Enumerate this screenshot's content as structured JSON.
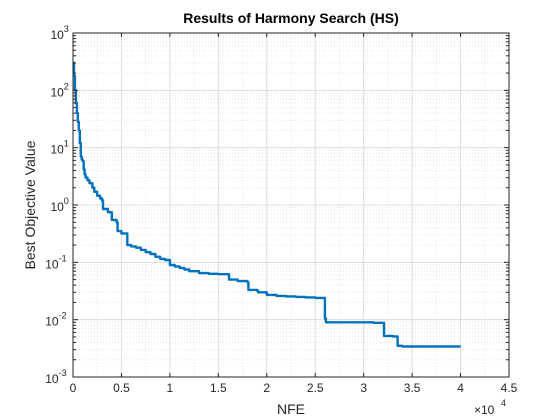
{
  "chart_data": {
    "type": "line",
    "title": "Results of Harmony Search (HS)",
    "xlabel": "NFE",
    "ylabel": "Best Objective Value",
    "xlim": [
      0,
      45000
    ],
    "ylim": [
      0.001,
      1000
    ],
    "yscale": "log",
    "grid": true,
    "minor_grid": true,
    "x_exponent_label": "×10",
    "x_exponent_power": "4",
    "x_tick_values": [
      0,
      5000,
      10000,
      15000,
      20000,
      25000,
      30000,
      35000,
      40000,
      45000
    ],
    "x_tick_labels": [
      "0",
      "0.5",
      "1",
      "1.5",
      "2",
      "2.5",
      "3",
      "3.5",
      "4",
      "4.5"
    ],
    "y_tick_values": [
      0.001,
      0.01,
      0.1,
      1,
      10,
      100,
      1000
    ],
    "y_tick_bases": [
      "10",
      "10",
      "10",
      "10",
      "10",
      "10",
      "10"
    ],
    "y_tick_exponents": [
      "-3",
      "-2",
      "-1",
      "0",
      "1",
      "2",
      "3"
    ],
    "series": [
      {
        "color": "#0072bd",
        "x": [
          0,
          100,
          200,
          300,
          400,
          500,
          600,
          700,
          800,
          900,
          1000,
          1100,
          1200,
          1300,
          1500,
          1700,
          2000,
          2200,
          2500,
          2800,
          3000,
          3100,
          3500,
          3600,
          4000,
          4500,
          4600,
          5000,
          5500,
          5600,
          6000,
          6500,
          7000,
          7500,
          8000,
          8500,
          9000,
          9500,
          10000,
          10500,
          11000,
          11500,
          12000,
          13000,
          14000,
          15000,
          16000,
          16100,
          17000,
          18000,
          18100,
          19000,
          19100,
          20000,
          21000,
          22000,
          23000,
          24000,
          25000,
          25900,
          26000,
          26100,
          27000,
          28000,
          29000,
          30000,
          31000,
          32000,
          32100,
          33000,
          33500,
          34000,
          35000,
          36000,
          37000,
          38000,
          39000,
          40000
        ],
        "y": [
          300,
          180,
          100,
          60,
          40,
          28,
          20,
          12,
          7,
          6.2,
          5.8,
          4.2,
          3.4,
          3.0,
          2.7,
          2.4,
          2.0,
          1.7,
          1.45,
          1.3,
          1.2,
          0.85,
          0.85,
          0.75,
          0.55,
          0.5,
          0.35,
          0.32,
          0.32,
          0.2,
          0.19,
          0.18,
          0.165,
          0.15,
          0.14,
          0.125,
          0.115,
          0.11,
          0.09,
          0.085,
          0.08,
          0.075,
          0.07,
          0.065,
          0.063,
          0.062,
          0.062,
          0.05,
          0.047,
          0.045,
          0.033,
          0.032,
          0.03,
          0.027,
          0.026,
          0.0255,
          0.025,
          0.0245,
          0.024,
          0.024,
          0.0105,
          0.009,
          0.009,
          0.009,
          0.009,
          0.009,
          0.0088,
          0.0088,
          0.0052,
          0.0051,
          0.0035,
          0.0034,
          0.0034,
          0.0034,
          0.0034,
          0.0034,
          0.0034,
          0.0034
        ]
      }
    ]
  }
}
